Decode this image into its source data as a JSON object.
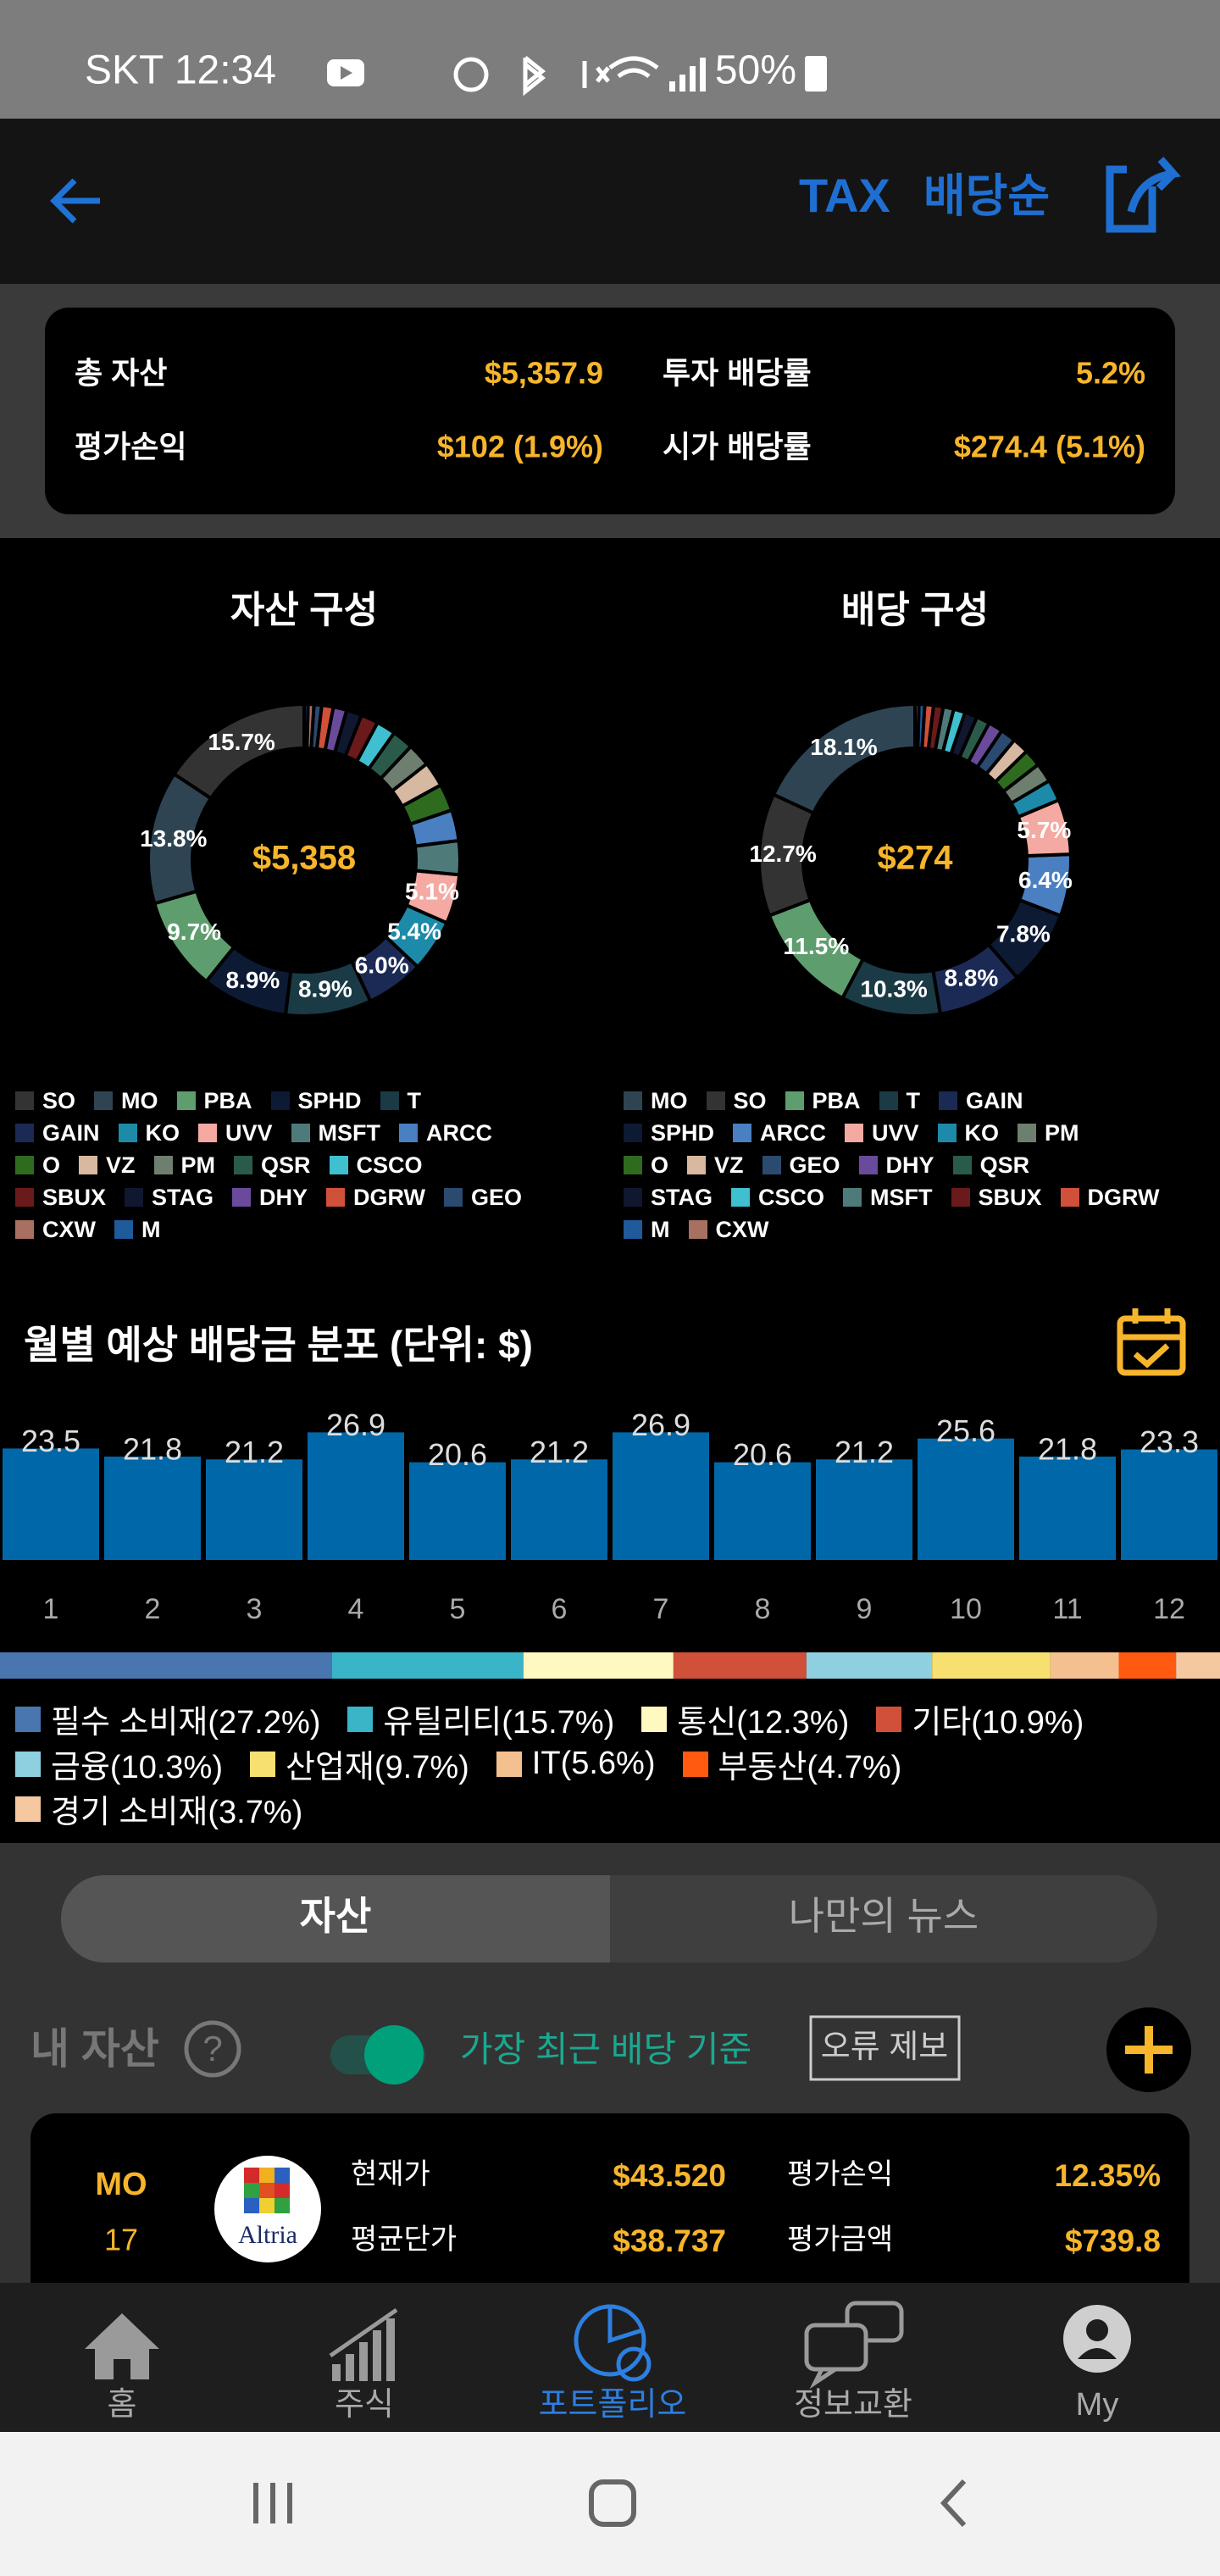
{
  "status_bar": {
    "carrier_time": "SKT 12:34",
    "battery": "50%"
  },
  "header": {
    "tax": "TAX",
    "sort": "배당순"
  },
  "summary": {
    "rows": [
      [
        {
          "label": "총 자산",
          "value": "$5,357.9"
        },
        {
          "label": "투자 배당률",
          "value": "5.2%"
        }
      ],
      [
        {
          "label": "평가손익",
          "value": "$102 (1.9%)"
        },
        {
          "label": "시가 배당률",
          "value": "$274.4 (5.1%)"
        }
      ]
    ]
  },
  "chart_data": [
    {
      "type": "pie",
      "title": "자산 구성",
      "center_label": "$5,358",
      "categories": [
        "SO",
        "MO",
        "PBA",
        "SPHD",
        "T",
        "GAIN",
        "KO",
        "UVV",
        "MSFT",
        "ARCC",
        "O",
        "VZ",
        "PM",
        "QSR",
        "CSCO",
        "SBUX",
        "STAG",
        "DHY",
        "DGRW",
        "GEO",
        "CXW",
        "M"
      ],
      "values": [
        15.7,
        13.8,
        9.7,
        8.9,
        8.9,
        6.0,
        5.4,
        5.1,
        3.5,
        3.2,
        2.8,
        2.6,
        2.4,
        2.2,
        2.0,
        1.8,
        1.6,
        1.4,
        1.2,
        0.8,
        0.6,
        0.4
      ],
      "value_labels": [
        "15.7%",
        "13.8%",
        "9.7%",
        "8.9%",
        "8.9%",
        "6.0%",
        "5.4%",
        "5.1%",
        null,
        null,
        null,
        null,
        null,
        null,
        null,
        null,
        null,
        null,
        null,
        null,
        null,
        null
      ],
      "colors": [
        "#333333",
        "#2e4453",
        "#5e9e6e",
        "#0d1a33",
        "#1a3a45",
        "#1b2a55",
        "#1c8aa8",
        "#f4a9a3",
        "#4f7a7a",
        "#4a7fc1",
        "#2e6b1f",
        "#d7b8a0",
        "#6f7f6f",
        "#2a5a4a",
        "#3fbfd0",
        "#6a1a1a",
        "#101830",
        "#6a4a9a",
        "#d0503a",
        "#2a4a70",
        "#a87060",
        "#1f5a9a"
      ]
    },
    {
      "type": "pie",
      "title": "배당 구성",
      "center_label": "$274",
      "categories": [
        "MO",
        "SO",
        "PBA",
        "T",
        "GAIN",
        "SPHD",
        "ARCC",
        "UVV",
        "KO",
        "PM",
        "O",
        "VZ",
        "GEO",
        "DHY",
        "QSR",
        "STAG",
        "CSCO",
        "MSFT",
        "SBUX",
        "DGRW",
        "M",
        "CXW"
      ],
      "values": [
        18.1,
        12.7,
        11.5,
        10.3,
        8.8,
        7.8,
        6.4,
        5.7,
        2.2,
        2.0,
        1.8,
        1.7,
        1.6,
        1.5,
        1.4,
        1.3,
        1.2,
        1.1,
        1.0,
        0.9,
        0.6,
        0.4
      ],
      "value_labels": [
        "18.1%",
        "12.7%",
        "11.5%",
        "10.3%",
        "8.8%",
        "7.8%",
        "6.4%",
        "5.7%",
        null,
        null,
        null,
        null,
        null,
        null,
        null,
        null,
        null,
        null,
        null,
        null,
        null,
        null
      ],
      "colors": [
        "#2e4453",
        "#333333",
        "#5e9e6e",
        "#1a3a45",
        "#1b2a55",
        "#0d1a33",
        "#4a7fc1",
        "#f4a9a3",
        "#1c8aa8",
        "#6f7f6f",
        "#2e6b1f",
        "#d7b8a0",
        "#2a4a70",
        "#6a4a9a",
        "#2a5a4a",
        "#101830",
        "#3fbfd0",
        "#4f7a7a",
        "#6a1a1a",
        "#d0503a",
        "#1f5a9a",
        "#a87060"
      ]
    },
    {
      "type": "bar",
      "title": "월별 예상 배당금 분포 (단위: $)",
      "categories": [
        1,
        2,
        3,
        4,
        5,
        6,
        7,
        8,
        9,
        10,
        11,
        12
      ],
      "values": [
        23.5,
        21.8,
        21.2,
        26.9,
        20.6,
        21.2,
        26.9,
        20.6,
        21.2,
        25.6,
        21.8,
        23.3
      ],
      "color": "#0068a8",
      "ylim": [
        0,
        30
      ]
    },
    {
      "type": "stacked_bar",
      "xlim": [
        0,
        100
      ],
      "series": [
        {
          "name": "필수 소비재(27.2%)",
          "color": "#4a76b0",
          "values": [
            27.2
          ]
        },
        {
          "name": "유틸리티(15.7%)",
          "color": "#3ab5c8",
          "values": [
            15.7
          ]
        },
        {
          "name": "통신(12.3%)",
          "color": "#fff8c0",
          "values": [
            12.3
          ]
        },
        {
          "name": "기타(10.9%)",
          "color": "#d0503a",
          "values": [
            10.9
          ]
        },
        {
          "name": "금융(10.3%)",
          "color": "#8fd0e0",
          "values": [
            10.3
          ]
        },
        {
          "name": "산업재(9.7%)",
          "color": "#f8e070",
          "values": [
            9.7
          ]
        },
        {
          "name": "IT(5.6%)",
          "color": "#f5c090",
          "values": [
            5.6
          ]
        },
        {
          "name": "부동산(4.7%)",
          "color": "#ff5a10",
          "values": [
            4.7
          ]
        },
        {
          "name": "경기 소비재(3.7%)",
          "color": "#f5c8a0",
          "values": [
            3.7
          ]
        }
      ]
    }
  ],
  "tabs": [
    "자산",
    "나만의 뉴스"
  ],
  "my_assets": {
    "title": "내 자산",
    "toggle_label": "가장 최근 배당 기준",
    "report_button": "오류 제보"
  },
  "holding": {
    "ticker": "MO",
    "count": 17,
    "logo": "Altria",
    "fields": [
      {
        "label": "현재가",
        "value": "$43.520"
      },
      {
        "label": "평균단가",
        "value": "$38.737"
      },
      {
        "label": "평가손익",
        "value": "12.35%"
      },
      {
        "label": "평가금액",
        "value": "$739.8"
      }
    ]
  },
  "nav": [
    "홈",
    "주식",
    "포트폴리오",
    "정보교환",
    "My"
  ]
}
